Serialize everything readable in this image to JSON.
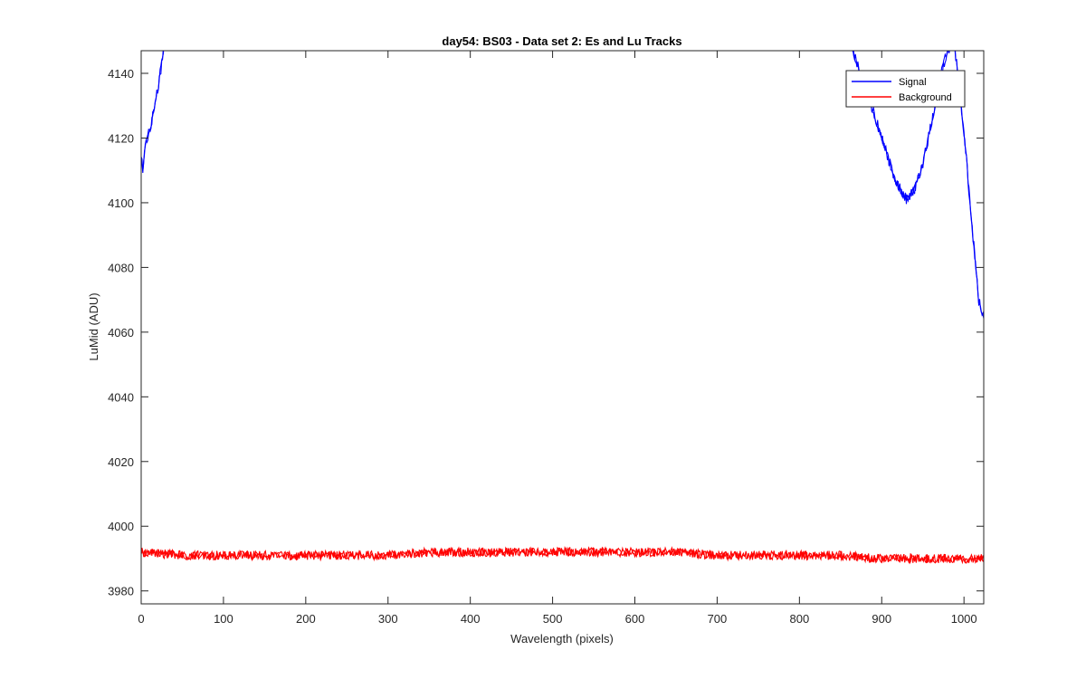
{
  "chart_data": {
    "type": "line",
    "title": "day54: BS03 - Data set 2: Es and Lu Tracks",
    "xlabel": "Wavelength (pixels)",
    "ylabel": "LuMid (ADU)",
    "xlim": [
      0,
      1024
    ],
    "ylim": [
      3976,
      4147
    ],
    "xticks": [
      0,
      100,
      200,
      300,
      400,
      500,
      600,
      700,
      800,
      900,
      1000
    ],
    "yticks": [
      3980,
      4000,
      4020,
      4040,
      4060,
      4080,
      4100,
      4120,
      4140
    ],
    "grid": false,
    "legend": {
      "location": "top-right",
      "entries": [
        "Signal",
        "Background"
      ]
    },
    "series": [
      {
        "name": "Signal",
        "color": "#0000ff",
        "x": [
          0,
          2,
          5,
          10,
          15,
          20,
          25,
          28,
          860,
          875,
          890,
          905,
          915,
          925,
          930,
          940,
          950,
          960,
          970,
          980,
          988,
          1000,
          1010,
          1018,
          1024
        ],
        "y": [
          4115,
          4110,
          4118,
          4122,
          4128,
          4135,
          4143,
          4150,
          4150,
          4140,
          4128,
          4116,
          4108,
          4103,
          4101,
          4104,
          4112,
          4124,
          4138,
          4147,
          4150,
          4122,
          4092,
          4070,
          4065
        ]
      },
      {
        "name": "Background",
        "color": "#ff0000",
        "x": [
          0,
          50,
          100,
          150,
          200,
          250,
          300,
          350,
          400,
          450,
          500,
          550,
          600,
          650,
          700,
          750,
          800,
          850,
          900,
          950,
          1000,
          1024
        ],
        "y": [
          3992,
          3991,
          3991,
          3991,
          3991,
          3991,
          3991,
          3992,
          3992,
          3992,
          3992,
          3992,
          3992,
          3992,
          3991,
          3991,
          3991,
          3991,
          3990,
          3990,
          3990,
          3990
        ]
      }
    ]
  }
}
